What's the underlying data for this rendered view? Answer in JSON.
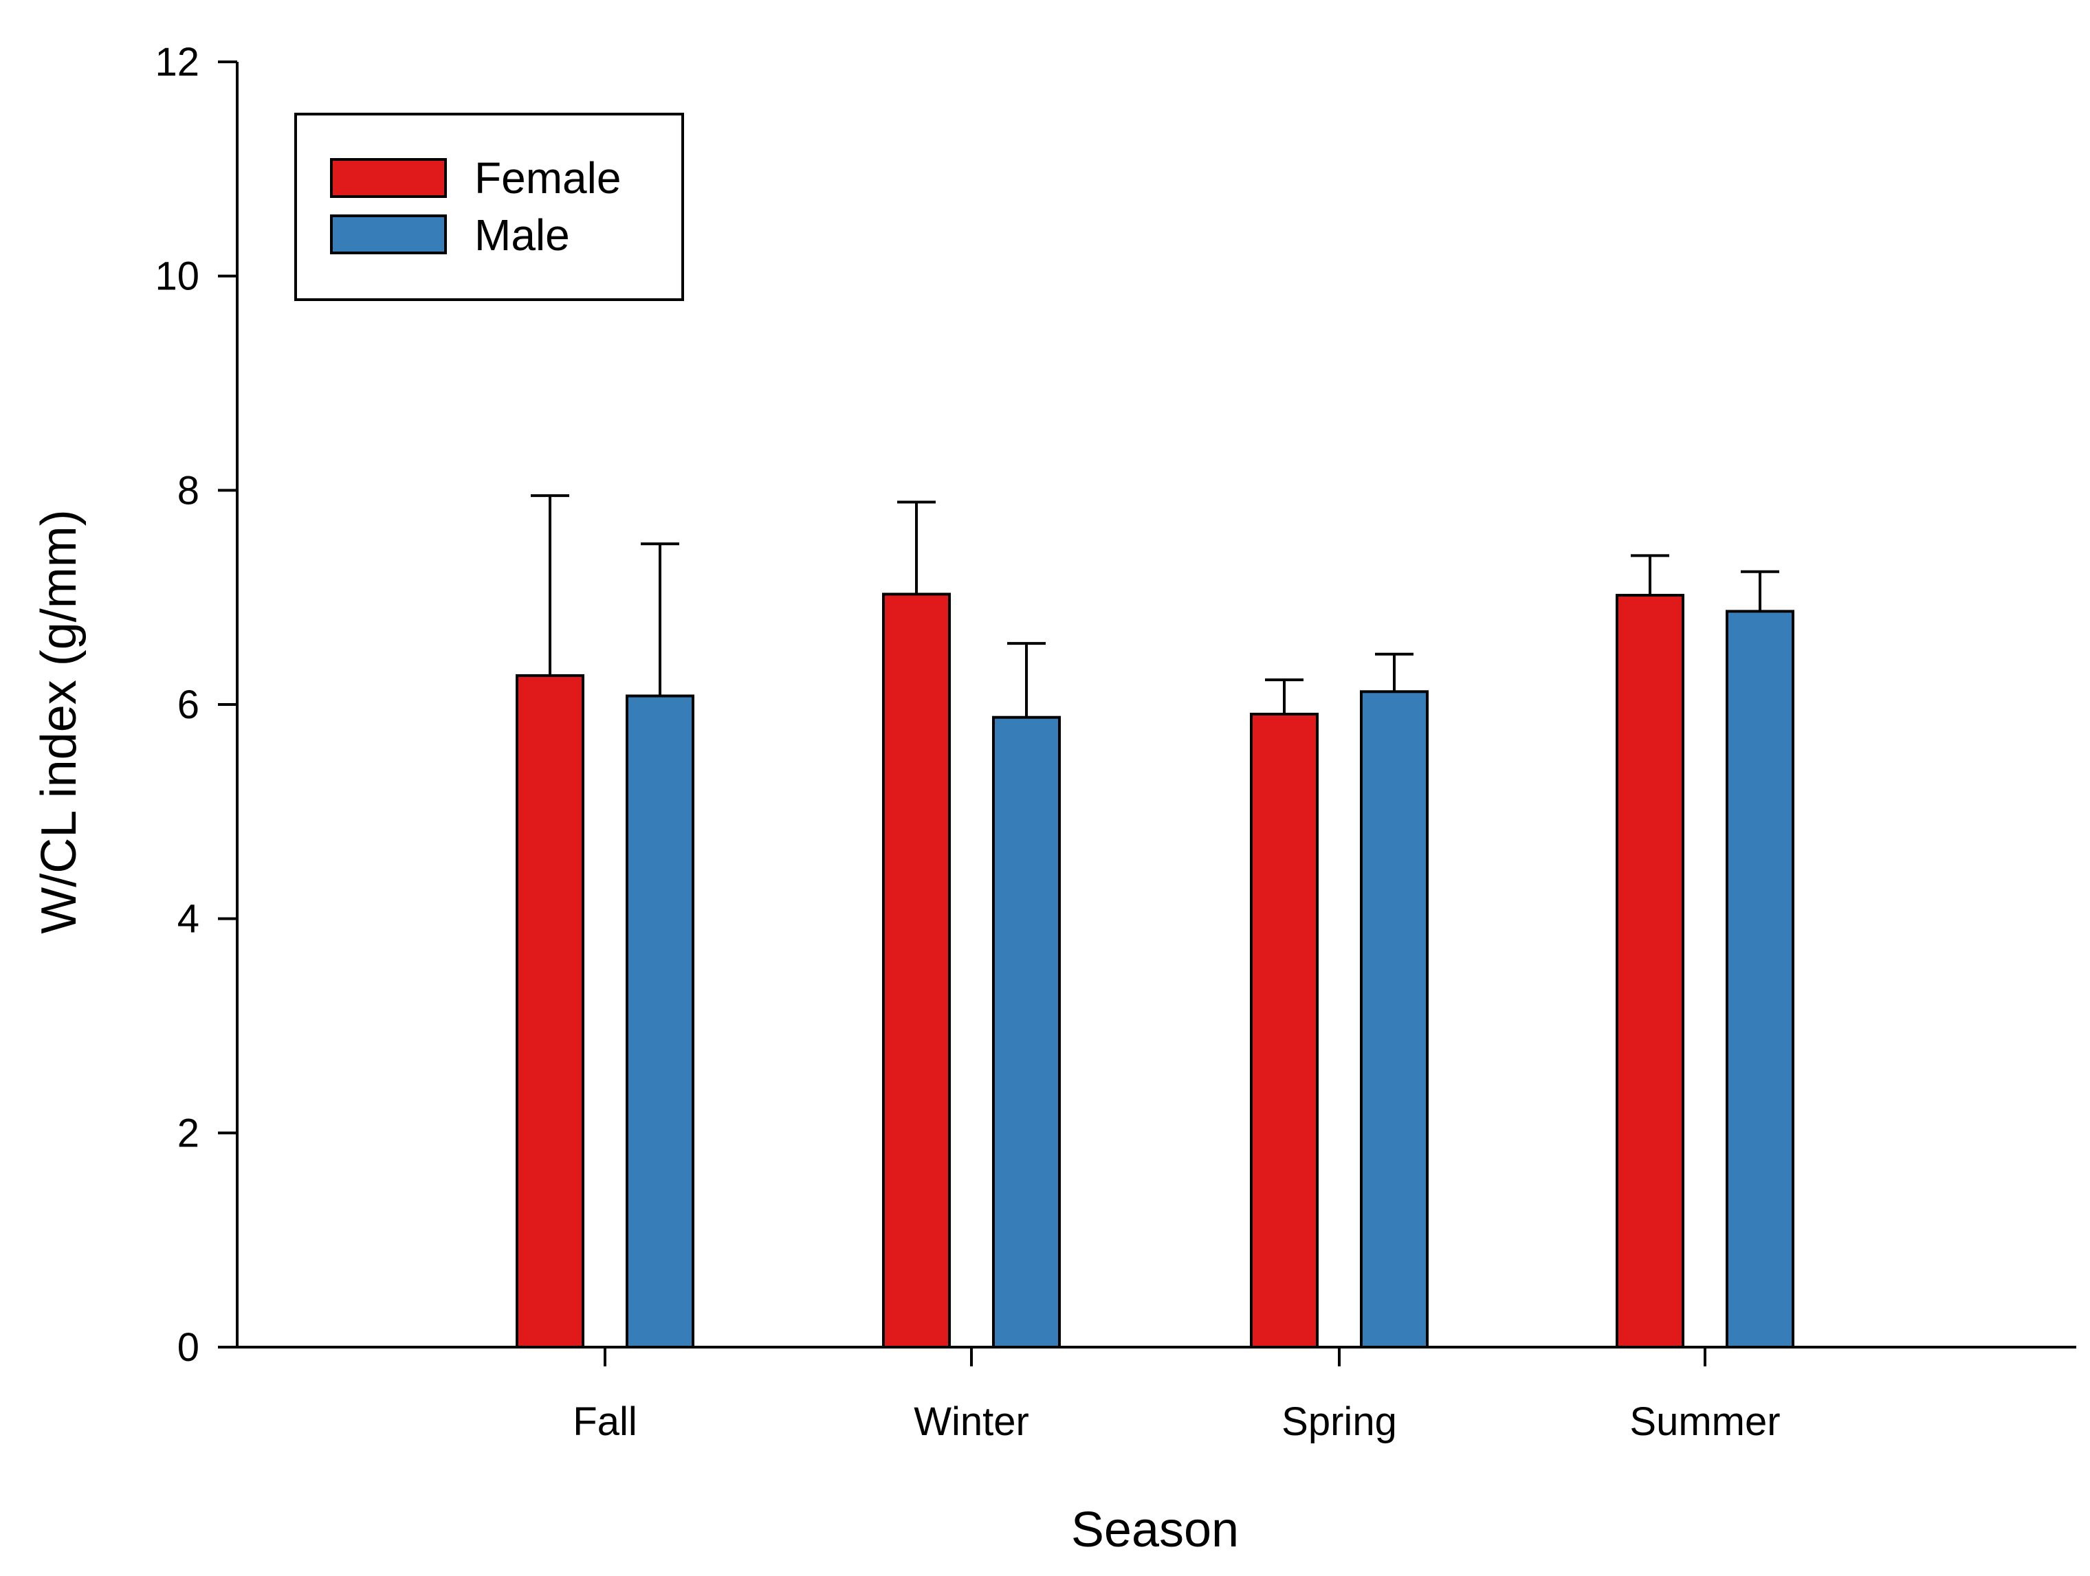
{
  "chart_data": {
    "type": "bar",
    "title": "",
    "xlabel": "Season",
    "ylabel": "W/CL index (g/mm)",
    "categories": [
      "Fall",
      "Winter",
      "Spring",
      "Summer"
    ],
    "ylim": [
      0,
      12
    ],
    "yticks": [
      "0",
      "2",
      "4",
      "6",
      "8",
      "10",
      "12"
    ],
    "grid": false,
    "legend_position": "top-left",
    "series": [
      {
        "name": "Female",
        "color": "#e0191b",
        "values": [
          6.27,
          7.03,
          5.91,
          7.02
        ],
        "error_upper": [
          7.95,
          7.89,
          6.23,
          7.39
        ]
      },
      {
        "name": "Male",
        "color": "#377eb8",
        "values": [
          6.08,
          5.88,
          6.12,
          6.87
        ],
        "error_upper": [
          7.5,
          6.57,
          6.47,
          7.24
        ]
      }
    ]
  }
}
